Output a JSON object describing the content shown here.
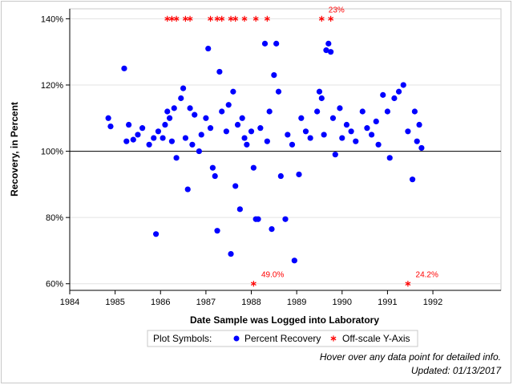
{
  "chart_data": {
    "type": "scatter",
    "xlabel": "Date Sample was Logged into Laboratory",
    "ylabel": "Recovery, in Percent",
    "x_ticks": [
      "1984",
      "1985",
      "1986",
      "1987",
      "1988",
      "1989",
      "1990",
      "1991",
      "1992"
    ],
    "y_ticks": [
      "60%",
      "80%",
      "100%",
      "120%",
      "140%"
    ],
    "xlim": [
      1984.0,
      1993.5
    ],
    "ylim": [
      58,
      143
    ],
    "grid": true,
    "reference_line_y": 100,
    "series": [
      {
        "name": "Percent Recovery",
        "color": "#0000ff",
        "marker": "circle",
        "points": [
          [
            1984.85,
            110
          ],
          [
            1984.9,
            107.5
          ],
          [
            1985.2,
            125
          ],
          [
            1985.3,
            108
          ],
          [
            1985.25,
            103
          ],
          [
            1985.4,
            103.5
          ],
          [
            1985.5,
            105
          ],
          [
            1985.6,
            107
          ],
          [
            1985.75,
            102
          ],
          [
            1985.85,
            104
          ],
          [
            1985.95,
            106
          ],
          [
            1985.9,
            75
          ],
          [
            1986.05,
            104
          ],
          [
            1986.1,
            108
          ],
          [
            1986.15,
            112
          ],
          [
            1986.2,
            110
          ],
          [
            1986.25,
            103
          ],
          [
            1986.3,
            113
          ],
          [
            1986.35,
            98
          ],
          [
            1986.45,
            116
          ],
          [
            1986.5,
            119
          ],
          [
            1986.55,
            104
          ],
          [
            1986.6,
            88.5
          ],
          [
            1986.65,
            113
          ],
          [
            1986.7,
            102
          ],
          [
            1986.75,
            111
          ],
          [
            1986.85,
            100
          ],
          [
            1986.9,
            105
          ],
          [
            1987.0,
            110
          ],
          [
            1987.05,
            131
          ],
          [
            1987.1,
            107
          ],
          [
            1987.15,
            95
          ],
          [
            1987.2,
            92.5
          ],
          [
            1987.25,
            76
          ],
          [
            1987.3,
            124
          ],
          [
            1987.35,
            112
          ],
          [
            1987.45,
            106
          ],
          [
            1987.5,
            114
          ],
          [
            1987.55,
            69
          ],
          [
            1987.6,
            118
          ],
          [
            1987.65,
            89.5
          ],
          [
            1987.7,
            108
          ],
          [
            1987.75,
            82.5
          ],
          [
            1987.8,
            110
          ],
          [
            1987.85,
            104
          ],
          [
            1987.9,
            102
          ],
          [
            1988.0,
            106
          ],
          [
            1988.05,
            95
          ],
          [
            1988.1,
            79.5
          ],
          [
            1988.15,
            79.5
          ],
          [
            1988.2,
            107
          ],
          [
            1988.3,
            132.5
          ],
          [
            1988.35,
            103
          ],
          [
            1988.4,
            112
          ],
          [
            1988.45,
            76.5
          ],
          [
            1988.5,
            123
          ],
          [
            1988.55,
            132.5
          ],
          [
            1988.6,
            118
          ],
          [
            1988.65,
            92.5
          ],
          [
            1988.75,
            79.5
          ],
          [
            1988.8,
            105
          ],
          [
            1988.9,
            102
          ],
          [
            1988.95,
            67
          ],
          [
            1989.05,
            93
          ],
          [
            1989.1,
            110
          ],
          [
            1989.2,
            106
          ],
          [
            1989.3,
            104
          ],
          [
            1989.45,
            112
          ],
          [
            1989.5,
            118
          ],
          [
            1989.55,
            116
          ],
          [
            1989.6,
            105
          ],
          [
            1989.65,
            130.5
          ],
          [
            1989.7,
            132.5
          ],
          [
            1989.75,
            130
          ],
          [
            1989.8,
            110
          ],
          [
            1989.85,
            99
          ],
          [
            1989.95,
            113
          ],
          [
            1990.0,
            104
          ],
          [
            1990.1,
            108
          ],
          [
            1990.2,
            106
          ],
          [
            1990.3,
            103
          ],
          [
            1990.45,
            112
          ],
          [
            1990.55,
            107
          ],
          [
            1990.65,
            105
          ],
          [
            1990.75,
            109
          ],
          [
            1990.8,
            102
          ],
          [
            1990.9,
            117
          ],
          [
            1991.0,
            112
          ],
          [
            1991.05,
            98
          ],
          [
            1991.15,
            116
          ],
          [
            1991.25,
            118
          ],
          [
            1991.35,
            120
          ],
          [
            1991.45,
            106
          ],
          [
            1991.55,
            91.5
          ],
          [
            1991.6,
            112
          ],
          [
            1991.65,
            103
          ],
          [
            1991.7,
            108
          ],
          [
            1991.75,
            101
          ]
        ]
      },
      {
        "name": "Off-scale Y-Axis",
        "color": "#ff0000",
        "marker": "asterisk",
        "points": [
          [
            1986.15,
            140
          ],
          [
            1986.25,
            140
          ],
          [
            1986.35,
            140
          ],
          [
            1986.55,
            140
          ],
          [
            1986.65,
            140
          ],
          [
            1987.1,
            140
          ],
          [
            1987.25,
            140
          ],
          [
            1987.35,
            140
          ],
          [
            1987.55,
            140
          ],
          [
            1987.65,
            140
          ],
          [
            1987.85,
            140
          ],
          [
            1988.1,
            140
          ],
          [
            1988.35,
            140
          ],
          [
            1989.55,
            140
          ],
          [
            1989.75,
            140
          ],
          [
            1988.05,
            60
          ],
          [
            1991.45,
            60
          ]
        ],
        "labels": [
          {
            "x": 1988.22,
            "y": 60,
            "text": "49.0%"
          },
          {
            "x": 1991.62,
            "y": 60,
            "text": "24.2%"
          },
          {
            "x": 1989.7,
            "y": 140,
            "text": "23%"
          }
        ]
      }
    ],
    "legend": {
      "title": "Plot Symbols:",
      "entries": [
        "Percent Recovery",
        "Off-scale Y-Axis"
      ]
    },
    "footnote": [
      "Hover over any data point for detailed info.",
      "Updated: 01/13/2017"
    ]
  }
}
